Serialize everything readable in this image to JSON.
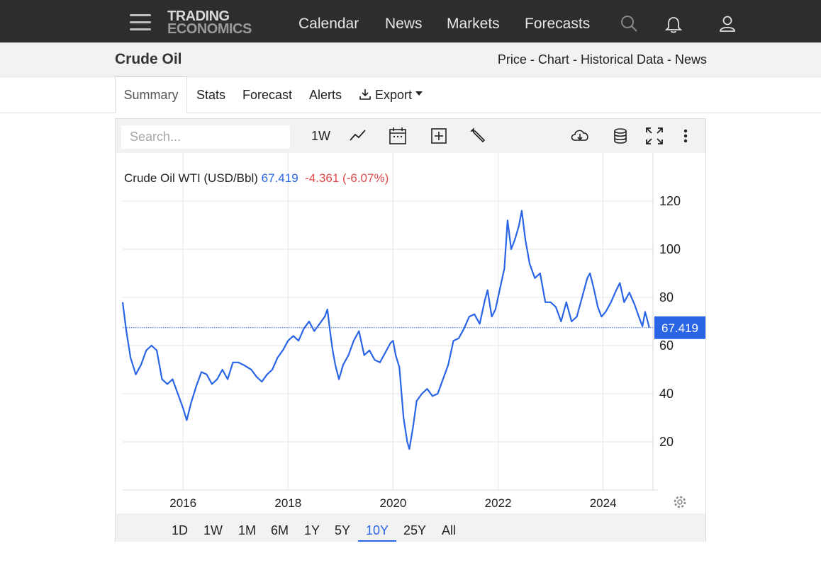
{
  "nav": {
    "logo_line1": "TRADING",
    "logo_line2": "ECONOMICS",
    "links": [
      "Calendar",
      "News",
      "Markets",
      "Forecasts"
    ],
    "icons": [
      "menu-icon",
      "search-icon",
      "bell-icon",
      "user-icon"
    ]
  },
  "header": {
    "title": "Crude Oil",
    "breadcrumbs": [
      "Price",
      "Chart",
      "Historical Data",
      "News"
    ],
    "separator": " - "
  },
  "tabs": {
    "summary": "Summary",
    "stats": "Stats",
    "forecast": "Forecast",
    "alerts": "Alerts",
    "export": "Export"
  },
  "toolbar": {
    "search_placeholder": "Search...",
    "interval": "1W",
    "icons": [
      "line-chart-icon",
      "calendar-icon",
      "add-indicator-icon",
      "wrench-icon",
      "download-icon",
      "database-icon",
      "fullscreen-icon",
      "more-icon"
    ]
  },
  "chart": {
    "series_name": "Crude Oil WTI (USD/Bbl)",
    "price": "67.419",
    "change": "-4.361",
    "change_pct": "(-6.07%)",
    "price_tag": "67.419",
    "line_color": "#2a65e6",
    "down_color": "#e04b4b"
  },
  "ranges": {
    "items": [
      "1D",
      "1W",
      "1M",
      "6M",
      "1Y",
      "5Y",
      "10Y",
      "25Y",
      "All"
    ],
    "active": "10Y"
  },
  "chart_data": {
    "type": "line",
    "title": "Crude Oil WTI (USD/Bbl)",
    "xlabel": "",
    "ylabel": "",
    "ylim": [
      0,
      140
    ],
    "xlim": [
      2014.85,
      2024.95
    ],
    "y_ticks": [
      20,
      40,
      60,
      80,
      100,
      120
    ],
    "x_ticks": [
      2016,
      2018,
      2020,
      2022,
      2024
    ],
    "grid": true,
    "last_value": 67.419,
    "series": [
      {
        "values": [
          [
            2014.85,
            78
          ],
          [
            2014.92,
            66
          ],
          [
            2015.0,
            55
          ],
          [
            2015.1,
            48
          ],
          [
            2015.2,
            52
          ],
          [
            2015.3,
            58
          ],
          [
            2015.4,
            60
          ],
          [
            2015.5,
            58
          ],
          [
            2015.6,
            46
          ],
          [
            2015.7,
            44
          ],
          [
            2015.8,
            46
          ],
          [
            2015.9,
            40
          ],
          [
            2016.0,
            34
          ],
          [
            2016.07,
            29
          ],
          [
            2016.15,
            36
          ],
          [
            2016.25,
            43
          ],
          [
            2016.35,
            49
          ],
          [
            2016.45,
            48
          ],
          [
            2016.55,
            44
          ],
          [
            2016.65,
            46
          ],
          [
            2016.75,
            50
          ],
          [
            2016.85,
            46
          ],
          [
            2016.95,
            53
          ],
          [
            2017.05,
            53
          ],
          [
            2017.15,
            52
          ],
          [
            2017.3,
            50
          ],
          [
            2017.4,
            47
          ],
          [
            2017.5,
            45
          ],
          [
            2017.6,
            48
          ],
          [
            2017.7,
            50
          ],
          [
            2017.8,
            55
          ],
          [
            2017.9,
            58
          ],
          [
            2018.0,
            62
          ],
          [
            2018.1,
            64
          ],
          [
            2018.2,
            62
          ],
          [
            2018.3,
            67
          ],
          [
            2018.4,
            70
          ],
          [
            2018.5,
            66
          ],
          [
            2018.6,
            69
          ],
          [
            2018.7,
            72
          ],
          [
            2018.75,
            75
          ],
          [
            2018.8,
            66
          ],
          [
            2018.85,
            58
          ],
          [
            2018.9,
            52
          ],
          [
            2018.97,
            46
          ],
          [
            2019.05,
            52
          ],
          [
            2019.15,
            56
          ],
          [
            2019.25,
            62
          ],
          [
            2019.35,
            66
          ],
          [
            2019.45,
            56
          ],
          [
            2019.55,
            58
          ],
          [
            2019.65,
            54
          ],
          [
            2019.75,
            53
          ],
          [
            2019.85,
            57
          ],
          [
            2019.95,
            61
          ],
          [
            2020.0,
            62
          ],
          [
            2020.05,
            56
          ],
          [
            2020.12,
            51
          ],
          [
            2020.2,
            30
          ],
          [
            2020.27,
            20
          ],
          [
            2020.31,
            17
          ],
          [
            2020.38,
            26
          ],
          [
            2020.45,
            37
          ],
          [
            2020.55,
            40
          ],
          [
            2020.65,
            42
          ],
          [
            2020.75,
            39
          ],
          [
            2020.85,
            40
          ],
          [
            2020.95,
            46
          ],
          [
            2021.05,
            52
          ],
          [
            2021.15,
            62
          ],
          [
            2021.25,
            63
          ],
          [
            2021.35,
            67
          ],
          [
            2021.45,
            72
          ],
          [
            2021.55,
            73
          ],
          [
            2021.65,
            69
          ],
          [
            2021.75,
            79
          ],
          [
            2021.8,
            83
          ],
          [
            2021.88,
            72
          ],
          [
            2021.95,
            75
          ],
          [
            2022.05,
            85
          ],
          [
            2022.12,
            92
          ],
          [
            2022.18,
            112
          ],
          [
            2022.25,
            100
          ],
          [
            2022.32,
            104
          ],
          [
            2022.4,
            110
          ],
          [
            2022.45,
            116
          ],
          [
            2022.52,
            104
          ],
          [
            2022.6,
            94
          ],
          [
            2022.7,
            88
          ],
          [
            2022.8,
            90
          ],
          [
            2022.9,
            78
          ],
          [
            2023.0,
            78
          ],
          [
            2023.1,
            76
          ],
          [
            2023.2,
            70
          ],
          [
            2023.3,
            78
          ],
          [
            2023.4,
            70
          ],
          [
            2023.5,
            72
          ],
          [
            2023.6,
            80
          ],
          [
            2023.7,
            88
          ],
          [
            2023.75,
            90
          ],
          [
            2023.82,
            84
          ],
          [
            2023.9,
            76
          ],
          [
            2023.97,
            72
          ],
          [
            2024.05,
            74
          ],
          [
            2024.15,
            78
          ],
          [
            2024.25,
            83
          ],
          [
            2024.32,
            86
          ],
          [
            2024.4,
            78
          ],
          [
            2024.5,
            82
          ],
          [
            2024.6,
            77
          ],
          [
            2024.68,
            72
          ],
          [
            2024.75,
            68
          ],
          [
            2024.8,
            74
          ],
          [
            2024.85,
            70
          ],
          [
            2024.88,
            67.4
          ]
        ]
      }
    ]
  }
}
